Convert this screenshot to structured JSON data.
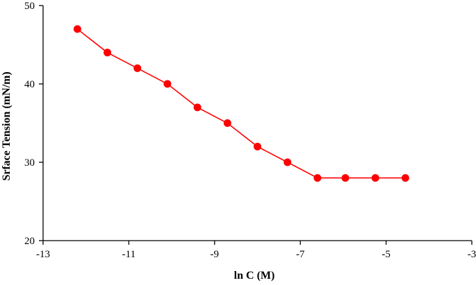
{
  "chart_data": {
    "type": "line",
    "title": "",
    "xlabel": "ln C (M)",
    "ylabel": "Srface Tension (mN/m)",
    "xlim": [
      -13,
      -3
    ],
    "ylim": [
      20,
      50
    ],
    "x_ticks": [
      -13,
      -11,
      -9,
      -7,
      -5,
      -3
    ],
    "x_tick_labels": [
      "-13",
      "-11",
      "-9",
      "-7",
      "-5",
      "-3"
    ],
    "y_ticks": [
      20,
      30,
      40,
      50
    ],
    "y_tick_labels": [
      "20",
      "30",
      "40",
      "50"
    ],
    "grid": false,
    "series": [
      {
        "color": "#ff0000",
        "x": [
          -12.2,
          -11.5,
          -10.8,
          -10.1,
          -9.4,
          -8.7,
          -8.0,
          -7.3,
          -6.6,
          -5.95,
          -5.25,
          -4.55
        ],
        "y": [
          47,
          44,
          42,
          40,
          37,
          35,
          32,
          30,
          28,
          28,
          28,
          28
        ]
      }
    ]
  }
}
